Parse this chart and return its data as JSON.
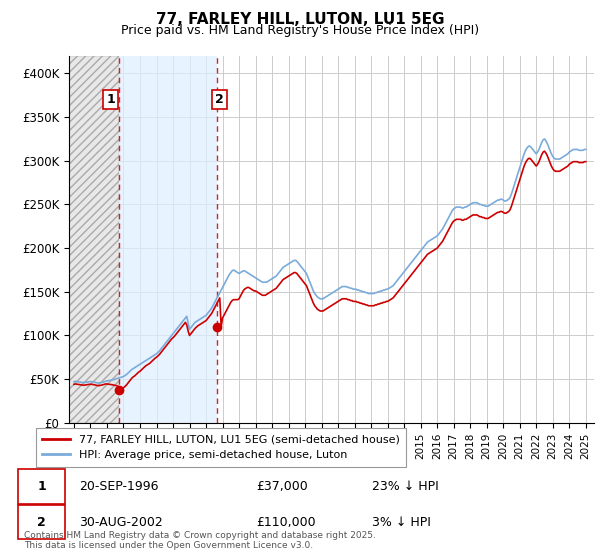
{
  "title": "77, FARLEY HILL, LUTON, LU1 5EG",
  "subtitle": "Price paid vs. HM Land Registry's House Price Index (HPI)",
  "ylim": [
    0,
    420000
  ],
  "yticks": [
    0,
    50000,
    100000,
    150000,
    200000,
    250000,
    300000,
    350000,
    400000
  ],
  "ytick_labels": [
    "£0",
    "£50K",
    "£100K",
    "£150K",
    "£200K",
    "£250K",
    "£300K",
    "£350K",
    "£400K"
  ],
  "xlim_start": 1993.7,
  "xlim_end": 2025.5,
  "purchase1_x": 1996.72,
  "purchase1_y": 37000,
  "purchase1_label": "1",
  "purchase1_date": "20-SEP-1996",
  "purchase1_price": "£37,000",
  "purchase1_hpi": "23% ↓ HPI",
  "purchase2_x": 2002.66,
  "purchase2_y": 110000,
  "purchase2_label": "2",
  "purchase2_date": "30-AUG-2002",
  "purchase2_price": "£110,000",
  "purchase2_hpi": "3% ↓ HPI",
  "legend1": "77, FARLEY HILL, LUTON, LU1 5EG (semi-detached house)",
  "legend2": "HPI: Average price, semi-detached house, Luton",
  "footer": "Contains HM Land Registry data © Crown copyright and database right 2025.\nThis data is licensed under the Open Government Licence v3.0.",
  "hpi_color": "#7aabdb",
  "price_color": "#cc0000",
  "grid_color": "#cccccc",
  "hatch_region_color": "#e0e0e0",
  "between_region_color": "#ddeeff",
  "hpi_data_x": [
    1994.0,
    1994.083,
    1994.167,
    1994.25,
    1994.333,
    1994.417,
    1994.5,
    1994.583,
    1994.667,
    1994.75,
    1994.833,
    1994.917,
    1995.0,
    1995.083,
    1995.167,
    1995.25,
    1995.333,
    1995.417,
    1995.5,
    1995.583,
    1995.667,
    1995.75,
    1995.833,
    1995.917,
    1996.0,
    1996.083,
    1996.167,
    1996.25,
    1996.333,
    1996.417,
    1996.5,
    1996.583,
    1996.667,
    1996.75,
    1996.833,
    1996.917,
    1997.0,
    1997.083,
    1997.167,
    1997.25,
    1997.333,
    1997.417,
    1997.5,
    1997.583,
    1997.667,
    1997.75,
    1997.833,
    1997.917,
    1998.0,
    1998.083,
    1998.167,
    1998.25,
    1998.333,
    1998.417,
    1998.5,
    1998.583,
    1998.667,
    1998.75,
    1998.833,
    1998.917,
    1999.0,
    1999.083,
    1999.167,
    1999.25,
    1999.333,
    1999.417,
    1999.5,
    1999.583,
    1999.667,
    1999.75,
    1999.833,
    1999.917,
    2000.0,
    2000.083,
    2000.167,
    2000.25,
    2000.333,
    2000.417,
    2000.5,
    2000.583,
    2000.667,
    2000.75,
    2000.833,
    2000.917,
    2001.0,
    2001.083,
    2001.167,
    2001.25,
    2001.333,
    2001.417,
    2001.5,
    2001.583,
    2001.667,
    2001.75,
    2001.833,
    2001.917,
    2002.0,
    2002.083,
    2002.167,
    2002.25,
    2002.333,
    2002.417,
    2002.5,
    2002.583,
    2002.667,
    2002.75,
    2002.833,
    2002.917,
    2003.0,
    2003.083,
    2003.167,
    2003.25,
    2003.333,
    2003.417,
    2003.5,
    2003.583,
    2003.667,
    2003.75,
    2003.833,
    2003.917,
    2004.0,
    2004.083,
    2004.167,
    2004.25,
    2004.333,
    2004.417,
    2004.5,
    2004.583,
    2004.667,
    2004.75,
    2004.833,
    2004.917,
    2005.0,
    2005.083,
    2005.167,
    2005.25,
    2005.333,
    2005.417,
    2005.5,
    2005.583,
    2005.667,
    2005.75,
    2005.833,
    2005.917,
    2006.0,
    2006.083,
    2006.167,
    2006.25,
    2006.333,
    2006.417,
    2006.5,
    2006.583,
    2006.667,
    2006.75,
    2006.833,
    2006.917,
    2007.0,
    2007.083,
    2007.167,
    2007.25,
    2007.333,
    2007.417,
    2007.5,
    2007.583,
    2007.667,
    2007.75,
    2007.833,
    2007.917,
    2008.0,
    2008.083,
    2008.167,
    2008.25,
    2008.333,
    2008.417,
    2008.5,
    2008.583,
    2008.667,
    2008.75,
    2008.833,
    2008.917,
    2009.0,
    2009.083,
    2009.167,
    2009.25,
    2009.333,
    2009.417,
    2009.5,
    2009.583,
    2009.667,
    2009.75,
    2009.833,
    2009.917,
    2010.0,
    2010.083,
    2010.167,
    2010.25,
    2010.333,
    2010.417,
    2010.5,
    2010.583,
    2010.667,
    2010.75,
    2010.833,
    2010.917,
    2011.0,
    2011.083,
    2011.167,
    2011.25,
    2011.333,
    2011.417,
    2011.5,
    2011.583,
    2011.667,
    2011.75,
    2011.833,
    2011.917,
    2012.0,
    2012.083,
    2012.167,
    2012.25,
    2012.333,
    2012.417,
    2012.5,
    2012.583,
    2012.667,
    2012.75,
    2012.833,
    2012.917,
    2013.0,
    2013.083,
    2013.167,
    2013.25,
    2013.333,
    2013.417,
    2013.5,
    2013.583,
    2013.667,
    2013.75,
    2013.833,
    2013.917,
    2014.0,
    2014.083,
    2014.167,
    2014.25,
    2014.333,
    2014.417,
    2014.5,
    2014.583,
    2014.667,
    2014.75,
    2014.833,
    2014.917,
    2015.0,
    2015.083,
    2015.167,
    2015.25,
    2015.333,
    2015.417,
    2015.5,
    2015.583,
    2015.667,
    2015.75,
    2015.833,
    2015.917,
    2016.0,
    2016.083,
    2016.167,
    2016.25,
    2016.333,
    2016.417,
    2016.5,
    2016.583,
    2016.667,
    2016.75,
    2016.833,
    2016.917,
    2017.0,
    2017.083,
    2017.167,
    2017.25,
    2017.333,
    2017.417,
    2017.5,
    2017.583,
    2017.667,
    2017.75,
    2017.833,
    2017.917,
    2018.0,
    2018.083,
    2018.167,
    2018.25,
    2018.333,
    2018.417,
    2018.5,
    2018.583,
    2018.667,
    2018.75,
    2018.833,
    2018.917,
    2019.0,
    2019.083,
    2019.167,
    2019.25,
    2019.333,
    2019.417,
    2019.5,
    2019.583,
    2019.667,
    2019.75,
    2019.833,
    2019.917,
    2020.0,
    2020.083,
    2020.167,
    2020.25,
    2020.333,
    2020.417,
    2020.5,
    2020.583,
    2020.667,
    2020.75,
    2020.833,
    2020.917,
    2021.0,
    2021.083,
    2021.167,
    2021.25,
    2021.333,
    2021.417,
    2021.5,
    2021.583,
    2021.667,
    2021.75,
    2021.833,
    2021.917,
    2022.0,
    2022.083,
    2022.167,
    2022.25,
    2022.333,
    2022.417,
    2022.5,
    2022.583,
    2022.667,
    2022.75,
    2022.833,
    2022.917,
    2023.0,
    2023.083,
    2023.167,
    2023.25,
    2023.333,
    2023.417,
    2023.5,
    2023.583,
    2023.667,
    2023.75,
    2023.833,
    2023.917,
    2024.0,
    2024.083,
    2024.167,
    2024.25,
    2024.333,
    2024.417,
    2024.5,
    2024.583,
    2024.667,
    2024.75,
    2024.833,
    2024.917,
    2025.0
  ],
  "hpi_data_y": [
    47000,
    47500,
    47200,
    47000,
    46800,
    46500,
    46200,
    46000,
    46200,
    46500,
    46800,
    47000,
    47200,
    47000,
    46800,
    46500,
    46000,
    45800,
    45500,
    45800,
    46000,
    46500,
    47000,
    47500,
    48000,
    48200,
    48500,
    48800,
    49000,
    49500,
    50000,
    50500,
    51000,
    51500,
    52000,
    52500,
    53000,
    54000,
    55000,
    56500,
    58000,
    59500,
    61000,
    62000,
    63000,
    64000,
    65000,
    66000,
    67000,
    68000,
    69000,
    70000,
    71000,
    72000,
    73000,
    74000,
    75000,
    76000,
    77000,
    78000,
    79000,
    80500,
    82000,
    84000,
    86000,
    88000,
    90000,
    92000,
    94000,
    96000,
    98000,
    100000,
    102000,
    104000,
    106000,
    108000,
    110000,
    112000,
    114000,
    116000,
    118000,
    120000,
    122000,
    114000,
    107000,
    109000,
    111000,
    113000,
    115000,
    116000,
    117000,
    118000,
    119000,
    120000,
    121000,
    122000,
    123000,
    125000,
    127000,
    129000,
    131000,
    134000,
    137000,
    140000,
    143000,
    146000,
    149000,
    152000,
    155000,
    158000,
    161000,
    164000,
    167000,
    170000,
    172000,
    174000,
    175000,
    174000,
    173000,
    172000,
    171000,
    172000,
    173000,
    174000,
    174000,
    173000,
    172000,
    171000,
    170000,
    169000,
    168000,
    167000,
    166000,
    165000,
    164000,
    163000,
    162000,
    161000,
    161000,
    161000,
    161000,
    162000,
    163000,
    164000,
    165000,
    166000,
    167000,
    168000,
    170000,
    172000,
    174000,
    176000,
    178000,
    179000,
    180000,
    181000,
    182000,
    183000,
    184000,
    185000,
    186000,
    186000,
    185000,
    183000,
    181000,
    179000,
    177000,
    175000,
    173000,
    171000,
    167000,
    163000,
    159000,
    155000,
    151000,
    148000,
    146000,
    144000,
    143000,
    142000,
    142000,
    142000,
    143000,
    144000,
    145000,
    146000,
    147000,
    148000,
    149000,
    150000,
    151000,
    152000,
    153000,
    154000,
    155000,
    156000,
    156000,
    156000,
    156000,
    155000,
    155000,
    154000,
    154000,
    153000,
    153000,
    153000,
    152000,
    152000,
    151000,
    151000,
    150000,
    150000,
    149000,
    149000,
    148000,
    148000,
    148000,
    148000,
    148000,
    149000,
    149000,
    150000,
    150000,
    151000,
    151000,
    152000,
    152000,
    153000,
    153000,
    154000,
    155000,
    156000,
    157000,
    159000,
    161000,
    163000,
    165000,
    167000,
    169000,
    171000,
    173000,
    175000,
    177000,
    179000,
    181000,
    183000,
    185000,
    187000,
    189000,
    191000,
    193000,
    195000,
    197000,
    199000,
    201000,
    203000,
    205000,
    207000,
    208000,
    209000,
    210000,
    211000,
    212000,
    213000,
    214000,
    216000,
    218000,
    220000,
    222000,
    225000,
    228000,
    231000,
    234000,
    237000,
    240000,
    243000,
    245000,
    246000,
    247000,
    247000,
    247000,
    247000,
    246000,
    246000,
    247000,
    247000,
    248000,
    249000,
    250000,
    251000,
    252000,
    252000,
    252000,
    252000,
    251000,
    250000,
    250000,
    249000,
    249000,
    248000,
    248000,
    248000,
    249000,
    250000,
    251000,
    252000,
    253000,
    254000,
    255000,
    255000,
    256000,
    256000,
    255000,
    254000,
    254000,
    255000,
    256000,
    258000,
    262000,
    267000,
    272000,
    277000,
    282000,
    287000,
    292000,
    297000,
    302000,
    307000,
    311000,
    314000,
    316000,
    317000,
    316000,
    314000,
    312000,
    310000,
    308000,
    310000,
    313000,
    317000,
    321000,
    324000,
    325000,
    323000,
    320000,
    316000,
    312000,
    308000,
    305000,
    303000,
    302000,
    302000,
    302000,
    302000,
    303000,
    304000,
    305000,
    306000,
    307000,
    308000,
    310000,
    311000,
    312000,
    313000,
    313000,
    313000,
    313000,
    312000,
    312000,
    312000,
    312000,
    313000,
    313000
  ],
  "price_data_y": [
    44000,
    44500,
    44200,
    44000,
    43800,
    43500,
    43200,
    43000,
    43200,
    43500,
    43800,
    44000,
    44200,
    44000,
    43800,
    43500,
    43000,
    42800,
    42500,
    42800,
    43000,
    43500,
    44000,
    44500,
    44500,
    44200,
    44000,
    43800,
    43500,
    43200,
    43000,
    42500,
    42000,
    37000,
    38000,
    39000,
    40000,
    41500,
    43000,
    45000,
    47000,
    49000,
    51000,
    52500,
    53500,
    55000,
    56500,
    58000,
    59000,
    60500,
    62000,
    63500,
    65000,
    66000,
    67000,
    68000,
    69500,
    71000,
    72500,
    74000,
    75000,
    76500,
    78000,
    80000,
    82000,
    84000,
    86000,
    88000,
    90000,
    92000,
    94000,
    96000,
    97500,
    99000,
    101000,
    103000,
    105000,
    107000,
    109000,
    111000,
    113000,
    115000,
    112000,
    105000,
    100000,
    102000,
    104000,
    106000,
    108000,
    109500,
    111000,
    112000,
    113000,
    114000,
    115000,
    116000,
    117000,
    119000,
    121000,
    123000,
    125000,
    128000,
    131000,
    134000,
    137000,
    140000,
    143000,
    110000,
    120000,
    123000,
    126000,
    129000,
    132000,
    135000,
    138000,
    140000,
    141000,
    141000,
    141000,
    141000,
    142000,
    145000,
    148000,
    151000,
    153000,
    154000,
    155000,
    155000,
    154000,
    153000,
    152000,
    151000,
    151000,
    150000,
    149000,
    148000,
    147000,
    146000,
    146000,
    146000,
    147000,
    148000,
    149000,
    150000,
    151000,
    152000,
    153000,
    154000,
    156000,
    158000,
    160000,
    162000,
    164000,
    165000,
    166000,
    167000,
    168000,
    169000,
    170000,
    171000,
    172000,
    172000,
    171000,
    169000,
    167000,
    165000,
    163000,
    161000,
    159000,
    157000,
    153000,
    149000,
    145000,
    141000,
    137000,
    134000,
    132000,
    130000,
    129000,
    128000,
    128000,
    128000,
    129000,
    130000,
    131000,
    132000,
    133000,
    134000,
    135000,
    136000,
    137000,
    138000,
    139000,
    140000,
    141000,
    142000,
    142000,
    142000,
    142000,
    141000,
    141000,
    140000,
    140000,
    139000,
    139000,
    139000,
    138000,
    138000,
    137000,
    137000,
    136000,
    136000,
    135000,
    135000,
    134000,
    134000,
    134000,
    134000,
    134000,
    135000,
    135000,
    136000,
    136000,
    137000,
    137000,
    138000,
    138000,
    139000,
    139000,
    140000,
    141000,
    142000,
    143000,
    145000,
    147000,
    149000,
    151000,
    153000,
    155000,
    157000,
    159000,
    161000,
    163000,
    165000,
    167000,
    169000,
    171000,
    173000,
    175000,
    177000,
    179000,
    181000,
    183000,
    185000,
    187000,
    189000,
    191000,
    193000,
    194000,
    195000,
    196000,
    197000,
    198000,
    199000,
    200000,
    202000,
    204000,
    206000,
    208000,
    211000,
    214000,
    217000,
    220000,
    223000,
    226000,
    229000,
    231000,
    232000,
    233000,
    233000,
    233000,
    233000,
    232000,
    232000,
    233000,
    233000,
    234000,
    235000,
    236000,
    237000,
    238000,
    238000,
    238000,
    238000,
    237000,
    236000,
    236000,
    235000,
    235000,
    234000,
    234000,
    234000,
    235000,
    236000,
    237000,
    238000,
    239000,
    240000,
    241000,
    241000,
    242000,
    242000,
    241000,
    240000,
    240000,
    241000,
    242000,
    244000,
    248000,
    253000,
    258000,
    263000,
    268000,
    273000,
    278000,
    283000,
    288000,
    293000,
    297000,
    300000,
    302000,
    303000,
    302000,
    300000,
    298000,
    296000,
    294000,
    296000,
    299000,
    303000,
    307000,
    310000,
    311000,
    309000,
    306000,
    302000,
    298000,
    294000,
    291000,
    289000,
    288000,
    288000,
    288000,
    288000,
    289000,
    290000,
    291000,
    292000,
    293000,
    294000,
    296000,
    297000,
    298000,
    299000,
    299000,
    299000,
    299000,
    298000,
    298000,
    298000,
    298000,
    299000,
    299000
  ]
}
